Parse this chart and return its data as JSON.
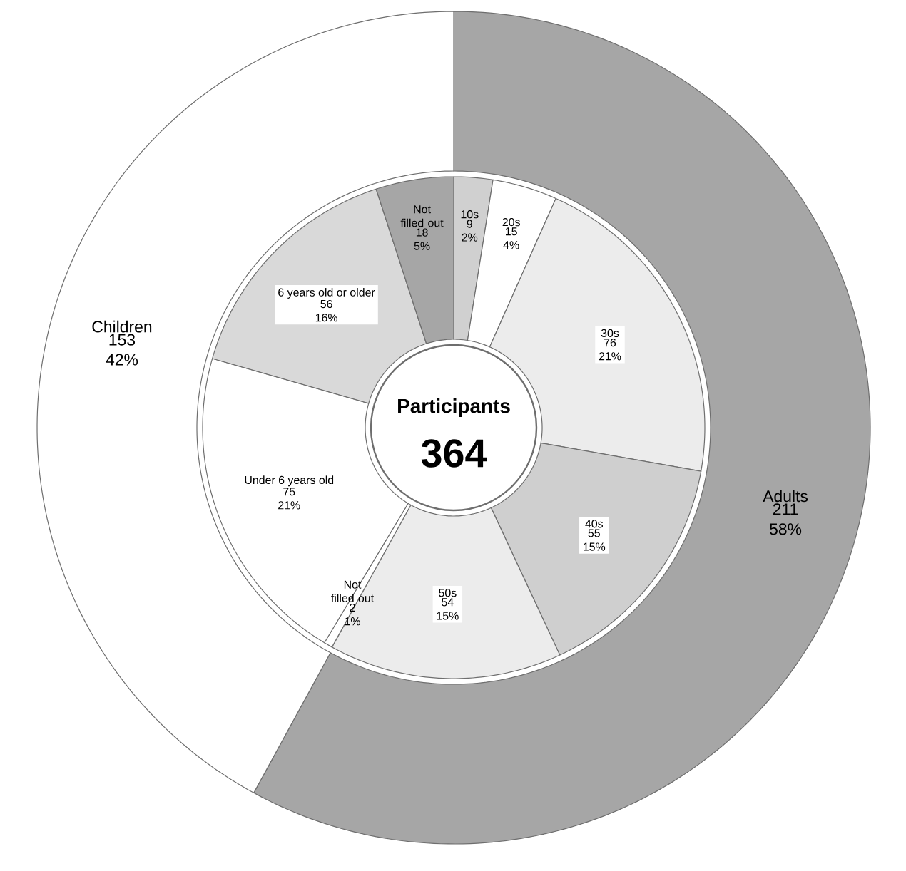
{
  "chart_data": [
    {
      "type": "donut",
      "categories": [
        "Adults",
        "Children"
      ],
      "values": [
        211,
        153
      ],
      "value_labels": [
        "211 58%",
        "153 42%"
      ],
      "colors": [
        "#a6a6a6",
        "#ffffff"
      ]
    },
    {
      "type": "donut",
      "categories": [
        "10s",
        "20s",
        "30s",
        "40s",
        "50s",
        "Not filled out",
        "Under 6 years old",
        "6 years old or older",
        "Not filled out"
      ],
      "values": [
        9,
        15,
        76,
        55,
        54,
        2,
        75,
        56,
        18
      ],
      "value_labels": [
        "9 2%",
        "15 4%",
        "76 21%",
        "55 15%",
        "54 15%",
        "2 1%",
        "75 21%",
        "56 16%",
        "18 5%"
      ],
      "colors": [
        "#d0d0d0",
        "#ffffff",
        "#ececec",
        "#cfcfcf",
        "#ececec",
        "#ffffff",
        "#ffffff",
        "#d9d9d9",
        "#a6a6a6"
      ],
      "annotations": [
        "Participants",
        "364"
      ]
    }
  ]
}
